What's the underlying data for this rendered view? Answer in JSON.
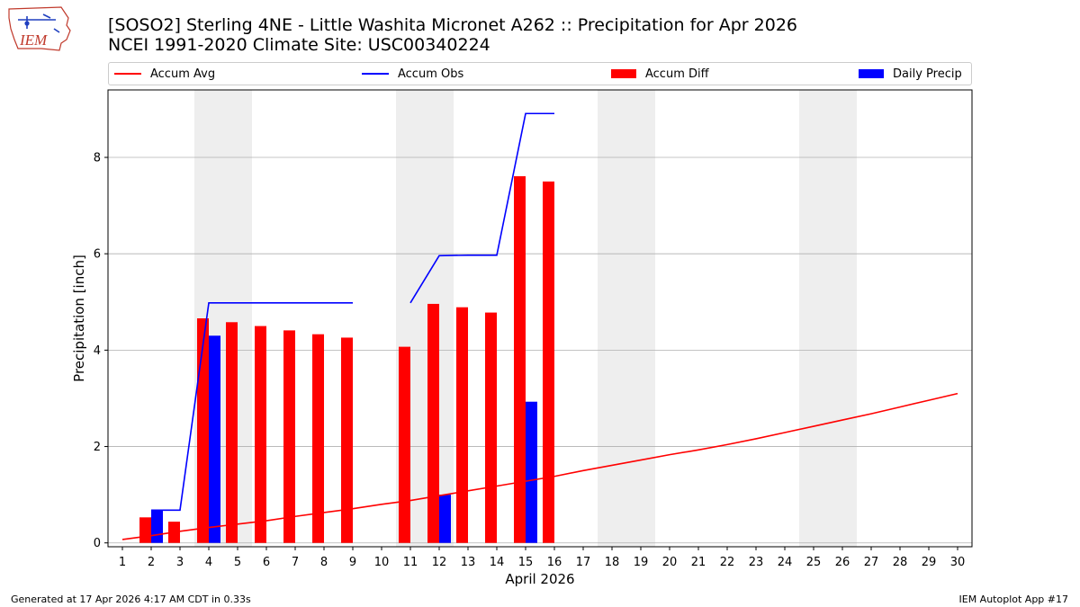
{
  "header": {
    "title_line1": "[SOSO2] Sterling 4NE - Little Washita Micronet A262 :: Precipitation for Apr 2026",
    "title_line2": "NCEI 1991-2020 Climate Site: USC00340224"
  },
  "logo": {
    "text": "IEM"
  },
  "legend": {
    "items": [
      {
        "label": "Accum Avg",
        "color": "#ff0000",
        "kind": "line"
      },
      {
        "label": "Accum Obs",
        "color": "#0000ff",
        "kind": "line"
      },
      {
        "label": "Accum Diff",
        "color": "#ff0000",
        "kind": "patch"
      },
      {
        "label": "Daily Precip",
        "color": "#0000ff",
        "kind": "patch"
      }
    ]
  },
  "chart_data": {
    "type": "bar",
    "title": "[SOSO2] Sterling 4NE - Little Washita Micronet A262 :: Precipitation for Apr 2026",
    "subtitle": "NCEI 1991-2020 Climate Site: USC00340224",
    "xlabel": "April 2026",
    "ylabel": "Precipitation [inch]",
    "xlim": [
      0.5,
      30.5
    ],
    "ylim": [
      -0.08,
      9.4
    ],
    "yticks": [
      0,
      2,
      4,
      6,
      8
    ],
    "grid": "y",
    "weekend_shading": [
      [
        3.5,
        5.5
      ],
      [
        10.5,
        12.5
      ],
      [
        17.5,
        19.5
      ],
      [
        24.5,
        26.5
      ]
    ],
    "days": [
      1,
      2,
      3,
      4,
      5,
      6,
      7,
      8,
      9,
      10,
      11,
      12,
      13,
      14,
      15,
      16,
      17,
      18,
      19,
      20,
      21,
      22,
      23,
      24,
      25,
      26,
      27,
      28,
      29,
      30
    ],
    "series": [
      {
        "name": "Accum Avg",
        "kind": "line",
        "color": "#ff0000",
        "values": [
          0.07,
          0.15,
          0.24,
          0.32,
          0.39,
          0.46,
          0.55,
          0.63,
          0.71,
          0.8,
          0.88,
          0.98,
          1.08,
          1.18,
          1.28,
          1.38,
          1.5,
          1.61,
          1.72,
          1.83,
          1.93,
          2.04,
          2.16,
          2.29,
          2.42,
          2.55,
          2.68,
          2.82,
          2.96,
          3.1
        ]
      },
      {
        "name": "Accum Obs",
        "kind": "line",
        "color": "#0000ff",
        "segments": [
          {
            "x": [
              2,
              3,
              4,
              5,
              6,
              7,
              8,
              9
            ],
            "y": [
              0.68,
              0.68,
              4.98,
              4.98,
              4.98,
              4.98,
              4.98,
              4.98
            ]
          },
          {
            "x": [
              11,
              12,
              13,
              14,
              15,
              16
            ],
            "y": [
              4.98,
              5.96,
              5.97,
              5.97,
              8.91,
              8.91
            ]
          }
        ]
      },
      {
        "name": "Accum Diff",
        "kind": "bar",
        "color": "#ff0000",
        "x": [
          2,
          3,
          4,
          5,
          6,
          7,
          8,
          9,
          11,
          12,
          13,
          14,
          15,
          16
        ],
        "values": [
          0.53,
          0.44,
          4.66,
          4.58,
          4.5,
          4.41,
          4.33,
          4.26,
          4.07,
          4.96,
          4.89,
          4.78,
          7.61,
          7.5
        ]
      },
      {
        "name": "Daily Precip",
        "kind": "bar",
        "color": "#0000ff",
        "x": [
          2,
          4,
          12,
          15
        ],
        "values": [
          0.68,
          4.3,
          1.0,
          2.93
        ]
      }
    ]
  },
  "footer": {
    "left": "Generated at 17 Apr 2026 4:17 AM CDT in 0.33s",
    "right": "IEM Autoplot App #17"
  }
}
